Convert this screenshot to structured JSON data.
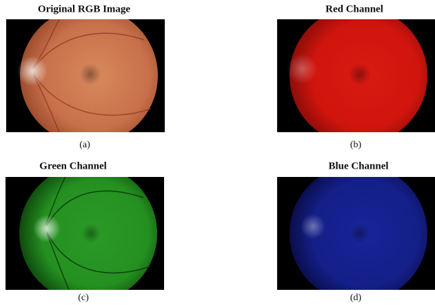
{
  "panels": [
    {
      "title": "Original RGB Image",
      "caption": "(a)"
    },
    {
      "title": "Red Channel",
      "caption": "(b)"
    },
    {
      "title": "Green Channel",
      "caption": "(c)"
    },
    {
      "title": "Blue Channel",
      "caption": "(d)"
    }
  ]
}
